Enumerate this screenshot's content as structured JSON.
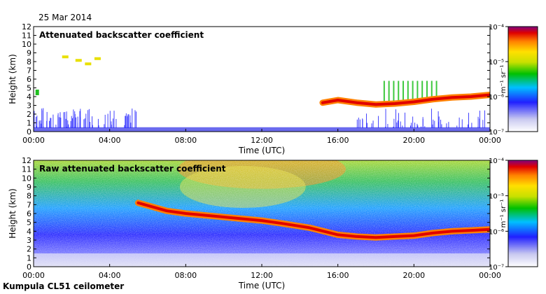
{
  "date": "25 Mar 2014",
  "footer": "Kumpula CL51 ceilometer",
  "colors": {
    "colormap": [
      "#ffffff",
      "#d8d8f0",
      "#2020ff",
      "#00c0ff",
      "#00c000",
      "#c8e000",
      "#ffe000",
      "#ff8000",
      "#e00000",
      "#800080"
    ],
    "frame": "#000000"
  },
  "chart_data": [
    {
      "type": "heatmap",
      "title": "Attenuated backscatter coefficient",
      "xlabel": "Time (UTC)",
      "ylabel": "Height (km)",
      "xticks": [
        "00:00",
        "04:00",
        "08:00",
        "12:00",
        "16:00",
        "20:00",
        "00:00"
      ],
      "xlim": [
        0,
        24
      ],
      "yticks": [
        0,
        1,
        2,
        3,
        4,
        5,
        6,
        7,
        8,
        9,
        10,
        11,
        12
      ],
      "ylim": [
        0,
        12
      ],
      "colorbar": {
        "label": "m⁻¹ sr⁻¹",
        "ticks": [
          "10⁻⁷",
          "10⁻⁶",
          "10⁻⁵",
          "10⁻⁴"
        ],
        "scale": "log",
        "range": [
          1e-07,
          0.0001
        ]
      },
      "cloud_layer": [
        {
          "t": 15.2,
          "h": 3.3
        },
        {
          "t": 16.0,
          "h": 3.6
        },
        {
          "t": 17.0,
          "h": 3.3
        },
        {
          "t": 18.0,
          "h": 3.1
        },
        {
          "t": 19.0,
          "h": 3.2
        },
        {
          "t": 20.0,
          "h": 3.4
        },
        {
          "t": 21.0,
          "h": 3.7
        },
        {
          "t": 22.0,
          "h": 3.9
        },
        {
          "t": 23.0,
          "h": 4.0
        },
        {
          "t": 24.0,
          "h": 4.2
        }
      ],
      "boundary_layer_top_km": 0.5
    },
    {
      "type": "heatmap",
      "title": "Raw attenuated backscatter coefficient",
      "xlabel": "Time (UTC)",
      "ylabel": "Height (km)",
      "xticks": [
        "00:00",
        "04:00",
        "08:00",
        "12:00",
        "16:00",
        "20:00",
        "00:00"
      ],
      "xlim": [
        0,
        24
      ],
      "yticks": [
        0,
        1,
        2,
        3,
        4,
        5,
        6,
        7,
        8,
        9,
        10,
        11,
        12
      ],
      "ylim": [
        0,
        12
      ],
      "colorbar": {
        "label": "m⁻¹ sr⁻¹",
        "ticks": [
          "10⁻⁷",
          "10⁻⁶",
          "10⁻⁵",
          "10⁻⁴"
        ],
        "scale": "log",
        "range": [
          1e-07,
          0.0001
        ]
      },
      "cloud_layer": [
        {
          "t": 5.5,
          "h": 7.2
        },
        {
          "t": 7.0,
          "h": 6.3
        },
        {
          "t": 8.0,
          "h": 6.0
        },
        {
          "t": 9.5,
          "h": 5.7
        },
        {
          "t": 11.0,
          "h": 5.4
        },
        {
          "t": 12.0,
          "h": 5.2
        },
        {
          "t": 13.0,
          "h": 4.9
        },
        {
          "t": 14.5,
          "h": 4.4
        },
        {
          "t": 16.0,
          "h": 3.6
        },
        {
          "t": 17.0,
          "h": 3.4
        },
        {
          "t": 18.0,
          "h": 3.3
        },
        {
          "t": 19.0,
          "h": 3.4
        },
        {
          "t": 20.0,
          "h": 3.5
        },
        {
          "t": 21.0,
          "h": 3.8
        },
        {
          "t": 22.0,
          "h": 4.0
        },
        {
          "t": 23.0,
          "h": 4.1
        },
        {
          "t": 24.0,
          "h": 4.2
        }
      ],
      "boundary_layer_top_km": 1.5
    }
  ]
}
